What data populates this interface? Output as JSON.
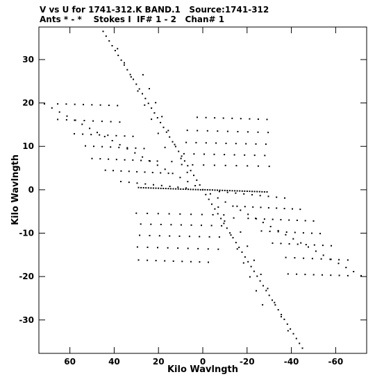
{
  "header": {
    "line1": "V vs U for 1741-312.K BAND.1   Source:1741-312",
    "line2": "Ants * - *    Stokes I  IF# 1 - 2   Chan# 1"
  },
  "chart_data": {
    "type": "scatter",
    "title": "V vs U for 1741-312.K BAND.1   Source:1741-312",
    "subtitle": "Ants * - *    Stokes I  IF# 1 - 2   Chan# 1",
    "xlabel": "Kilo Wavlngth",
    "ylabel": "Kilo Wavlngth",
    "xlim": [
      74,
      -74
    ],
    "ylim": [
      -37.7,
      37.5
    ],
    "xticks": [
      60,
      40,
      20,
      0,
      -20,
      -40,
      -60
    ],
    "yticks": [
      30,
      20,
      10,
      0,
      -10,
      -20,
      -30
    ],
    "grid": false,
    "legend": "none",
    "marker_color": "#000000",
    "tracks": [
      {
        "x0": 71.5,
        "y0": 19.8,
        "x1": 0,
        "y1": 0,
        "n": 22
      },
      {
        "x0": 65.5,
        "y0": 19.8,
        "x1": 38.5,
        "y1": 19.4,
        "n": 8
      },
      {
        "x0": 65.5,
        "y0": 16.2,
        "x1": 37.5,
        "y1": 15.6,
        "n": 8
      },
      {
        "x0": 58,
        "y0": 12.9,
        "x1": 31.5,
        "y1": 12.3,
        "n": 8
      },
      {
        "x0": 53,
        "y0": 10.1,
        "x1": 26.5,
        "y1": 9.5,
        "n": 8
      },
      {
        "x0": 50,
        "y0": 7.2,
        "x1": 20.5,
        "y1": 6.6,
        "n": 9
      },
      {
        "x0": 44,
        "y0": 4.5,
        "x1": 15.5,
        "y1": 3.8,
        "n": 9
      },
      {
        "x0": 37,
        "y0": 1.9,
        "x1": 7.5,
        "y1": 0.4,
        "n": 9
      },
      {
        "x0": 45,
        "y0": 36.5,
        "x1": 0,
        "y1": 0,
        "n": 34
      },
      {
        "x0": 38.5,
        "y0": 32.5,
        "x1": 14,
        "y1": 6.5,
        "n": 9
      },
      {
        "x0": 27,
        "y0": 26.5,
        "x1": 7,
        "y1": 4.0,
        "n": 8
      },
      {
        "x0": 29,
        "y0": 0.5,
        "x1": 1,
        "y1": 0.0,
        "n": 26
      },
      {
        "x0": 2.5,
        "y0": 16.7,
        "x1": -29,
        "y1": 16.2,
        "n": 9
      },
      {
        "x0": 7,
        "y0": 13.7,
        "x1": -29.5,
        "y1": 13.2,
        "n": 9
      },
      {
        "x0": 7.5,
        "y0": 10.9,
        "x1": -28.5,
        "y1": 10.5,
        "n": 9
      },
      {
        "x0": 8.5,
        "y0": 8.3,
        "x1": -28,
        "y1": 7.9,
        "n": 9
      },
      {
        "x0": 9.5,
        "y0": 5.8,
        "x1": -30,
        "y1": 5.4,
        "n": 9
      },
      {
        "x0": -71.5,
        "y0": -19.8,
        "x1": 0,
        "y1": 0,
        "n": 22
      },
      {
        "x0": -65.5,
        "y0": -19.8,
        "x1": -38.5,
        "y1": -19.4,
        "n": 8
      },
      {
        "x0": -65.5,
        "y0": -16.2,
        "x1": -37.5,
        "y1": -15.6,
        "n": 8
      },
      {
        "x0": -58,
        "y0": -12.9,
        "x1": -31.5,
        "y1": -12.3,
        "n": 8
      },
      {
        "x0": -53,
        "y0": -10.1,
        "x1": -26.5,
        "y1": -9.5,
        "n": 8
      },
      {
        "x0": -50,
        "y0": -7.2,
        "x1": -20.5,
        "y1": -6.6,
        "n": 9
      },
      {
        "x0": -44,
        "y0": -4.5,
        "x1": -15.5,
        "y1": -3.8,
        "n": 9
      },
      {
        "x0": -37,
        "y0": -1.9,
        "x1": -7.5,
        "y1": -0.4,
        "n": 9
      },
      {
        "x0": -45,
        "y0": -36.5,
        "x1": 0,
        "y1": 0,
        "n": 34
      },
      {
        "x0": -38.5,
        "y0": -32.5,
        "x1": -14,
        "y1": -6.5,
        "n": 9
      },
      {
        "x0": -27,
        "y0": -26.5,
        "x1": -7,
        "y1": -4.0,
        "n": 8
      },
      {
        "x0": -29,
        "y0": -0.5,
        "x1": -1,
        "y1": 0.0,
        "n": 26
      },
      {
        "x0": -2.5,
        "y0": -16.7,
        "x1": 29,
        "y1": -16.2,
        "n": 9
      },
      {
        "x0": -7,
        "y0": -13.7,
        "x1": 29.5,
        "y1": -13.2,
        "n": 9
      },
      {
        "x0": -7.5,
        "y0": -10.9,
        "x1": 28.5,
        "y1": -10.5,
        "n": 9
      },
      {
        "x0": -8.5,
        "y0": -8.3,
        "x1": 28,
        "y1": -7.9,
        "n": 9
      },
      {
        "x0": -9.5,
        "y0": -5.8,
        "x1": 30,
        "y1": -5.4,
        "n": 9
      }
    ]
  }
}
